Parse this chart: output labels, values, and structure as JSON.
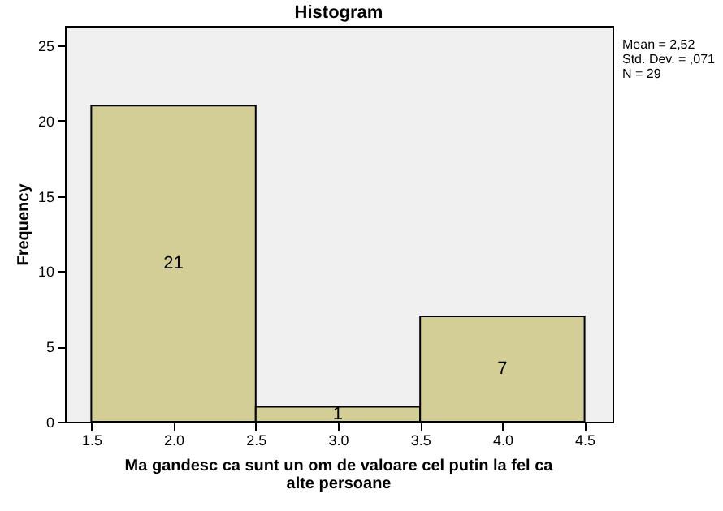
{
  "chart_data": {
    "type": "histogram",
    "title": "Histogram",
    "xlabel": "Ma gandesc ca sunt un om de valoare cel putin la fel ca alte persoane",
    "ylabel": "Frequency",
    "bins": [
      1.5,
      2.5,
      3.5,
      4.5
    ],
    "values": [
      21,
      1,
      7
    ],
    "color": "#d3ce96",
    "xlim": [
      1.34,
      4.67
    ],
    "xticks": [
      1.5,
      {
        "value": 2,
        "label": "2.0"
      },
      2.5,
      {
        "value": 3,
        "label": "3.0"
      },
      3.5,
      {
        "value": 4,
        "label": "4.0"
      },
      4.5
    ],
    "ylim": [
      0,
      26.3
    ],
    "yticks": [
      0,
      5,
      10,
      15,
      20,
      25
    ],
    "data_labels": true,
    "grid": false,
    "annotations": [
      "Mean = 2,52",
      "Std. Dev. = ,071",
      "N = 29"
    ]
  }
}
